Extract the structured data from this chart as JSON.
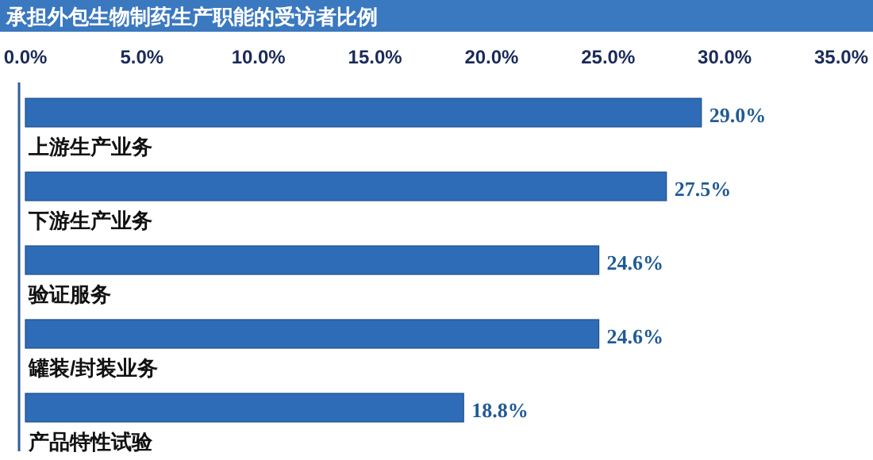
{
  "chart_data": {
    "type": "bar",
    "orientation": "horizontal",
    "title": "承担外包生物制药生产职能的受访者比例",
    "categories": [
      "上游生产业务",
      "下游生产业务",
      "验证服务",
      "罐装/封装业务",
      "产品特性试验"
    ],
    "values": [
      29.0,
      27.5,
      24.6,
      24.6,
      18.8
    ],
    "value_labels": [
      "29.0%",
      "27.5%",
      "24.6%",
      "24.6%",
      "18.8%"
    ],
    "color": "#2f6cb8",
    "xlim": [
      0,
      35
    ],
    "xticks": [
      {
        "value": 0,
        "label": "0.0%"
      },
      {
        "value": 5,
        "label": "5.0%"
      },
      {
        "value": 10,
        "label": "10.0%"
      },
      {
        "value": 15,
        "label": "15.0%"
      },
      {
        "value": 20,
        "label": "20.0%"
      },
      {
        "value": 25,
        "label": "25.0%"
      },
      {
        "value": 30,
        "label": "30.0%"
      },
      {
        "value": 35,
        "label": "35.0%"
      }
    ],
    "grid": false
  }
}
